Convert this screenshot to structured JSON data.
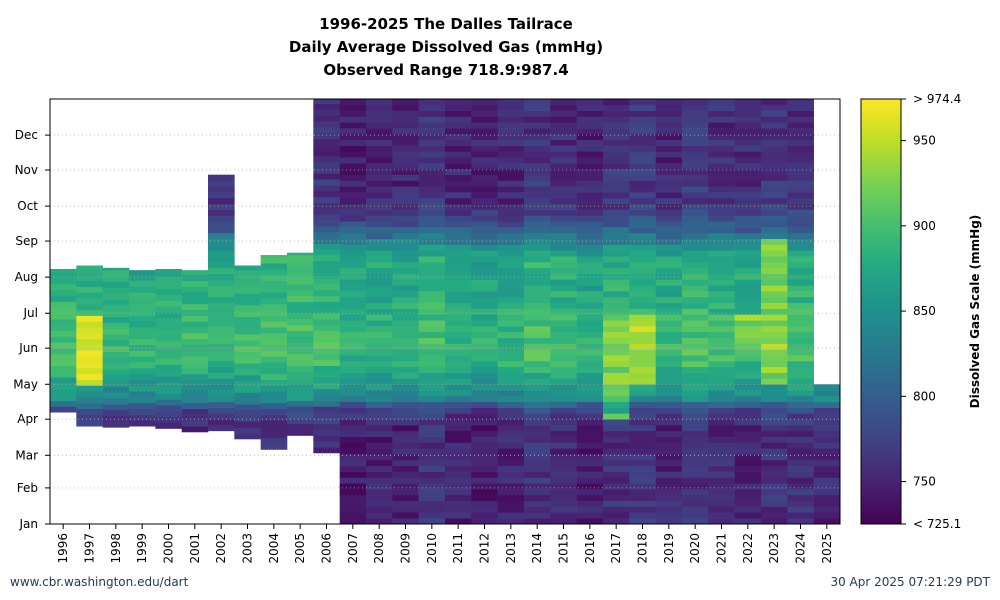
{
  "footer": {
    "source": "www.cbr.washington.edu/dart",
    "timestamp": "30 Apr 2025 07:21:29 PDT"
  },
  "chart_data": {
    "type": "heatmap",
    "title": [
      "1996-2025 The Dalles Tailrace",
      "Daily Average Dissolved Gas (mmHg)",
      "Observed Range 718.9:987.4"
    ],
    "observed_range": [
      718.9,
      987.4
    ],
    "x": [
      1996,
      1997,
      1998,
      1999,
      2000,
      2001,
      2002,
      2003,
      2004,
      2005,
      2006,
      2007,
      2008,
      2009,
      2010,
      2011,
      2012,
      2013,
      2014,
      2015,
      2016,
      2017,
      2018,
      2019,
      2020,
      2021,
      2022,
      2023,
      2024,
      2025
    ],
    "y_months": [
      "Jan",
      "Feb",
      "Mar",
      "Apr",
      "May",
      "Jun",
      "Jul",
      "Aug",
      "Sep",
      "Oct",
      "Nov",
      "Dec"
    ],
    "colorbar": {
      "label": "Dissolved Gas Scale (mmHg)",
      "min": 725.1,
      "max": 974.4,
      "ticks": [
        750,
        800,
        850,
        900,
        950
      ],
      "min_label": "< 725.1",
      "max_label": "> 974.4",
      "colormap": "viridis"
    },
    "coverage_day_of_year": [
      [
        97,
        219
      ],
      [
        85,
        222
      ],
      [
        84,
        220
      ],
      [
        85,
        218
      ],
      [
        83,
        219
      ],
      [
        80,
        218
      ],
      [
        81,
        300
      ],
      [
        74,
        222
      ],
      [
        65,
        231
      ],
      [
        77,
        233
      ],
      [
        62,
        365
      ],
      [
        1,
        365
      ],
      [
        1,
        365
      ],
      [
        1,
        365
      ],
      [
        1,
        365
      ],
      [
        1,
        365
      ],
      [
        1,
        365
      ],
      [
        1,
        365
      ],
      [
        1,
        365
      ],
      [
        1,
        365
      ],
      [
        1,
        365
      ],
      [
        1,
        365
      ],
      [
        1,
        365
      ],
      [
        1,
        365
      ],
      [
        1,
        365
      ],
      [
        1,
        365
      ],
      [
        1,
        365
      ],
      [
        1,
        365
      ],
      [
        1,
        365
      ],
      [
        1,
        120
      ]
    ],
    "seasonal_profile": {
      "winter_jan_mar": 755,
      "april": 780,
      "may_jun_peak": 895,
      "jul_aug": 880,
      "sep": 830,
      "oct_dec": 760
    },
    "notable_highs": [
      {
        "year": 1997,
        "months": "May-Jun",
        "value": 965
      },
      {
        "year": 2017,
        "months": "Apr-Jun",
        "value": 935
      },
      {
        "year": 2018,
        "months": "May-Jun",
        "value": 945
      },
      {
        "year": 2022,
        "months": "Jun",
        "value": 940
      },
      {
        "year": 2023,
        "months": "May-Aug",
        "value": 935
      }
    ]
  }
}
